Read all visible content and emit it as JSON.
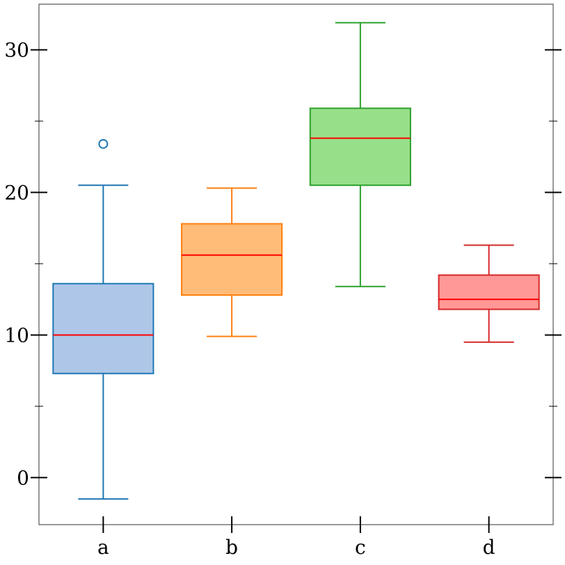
{
  "chart_data": {
    "type": "box",
    "categories": [
      "a",
      "b",
      "c",
      "d"
    ],
    "ylim": [
      -3.3,
      33.2
    ],
    "yticks_major": [
      0,
      10,
      20,
      30
    ],
    "yticks_minor": [
      5,
      15,
      25
    ],
    "grid": false,
    "series": [
      {
        "category": "a",
        "whisker_low": -1.5,
        "q1": 7.3,
        "median": 10.0,
        "q3": 13.6,
        "whisker_high": 20.5,
        "outliers": [
          23.4
        ],
        "face_color": "#aec7e8",
        "edge_color": "#1f77b4"
      },
      {
        "category": "b",
        "whisker_low": 9.9,
        "q1": 12.8,
        "median": 15.6,
        "q3": 17.8,
        "whisker_high": 20.3,
        "outliers": [],
        "face_color": "#ffbb78",
        "edge_color": "#ff7f0e"
      },
      {
        "category": "c",
        "whisker_low": 13.4,
        "q1": 20.5,
        "median": 23.8,
        "q3": 25.9,
        "whisker_high": 31.9,
        "outliers": [],
        "face_color": "#98df8a",
        "edge_color": "#2ca02c"
      },
      {
        "category": "d",
        "whisker_low": 9.5,
        "q1": 11.8,
        "median": 12.5,
        "q3": 14.2,
        "whisker_high": 16.3,
        "outliers": [],
        "face_color": "#ff9896",
        "edge_color": "#d62728"
      }
    ],
    "median_color": "#ff0000"
  }
}
